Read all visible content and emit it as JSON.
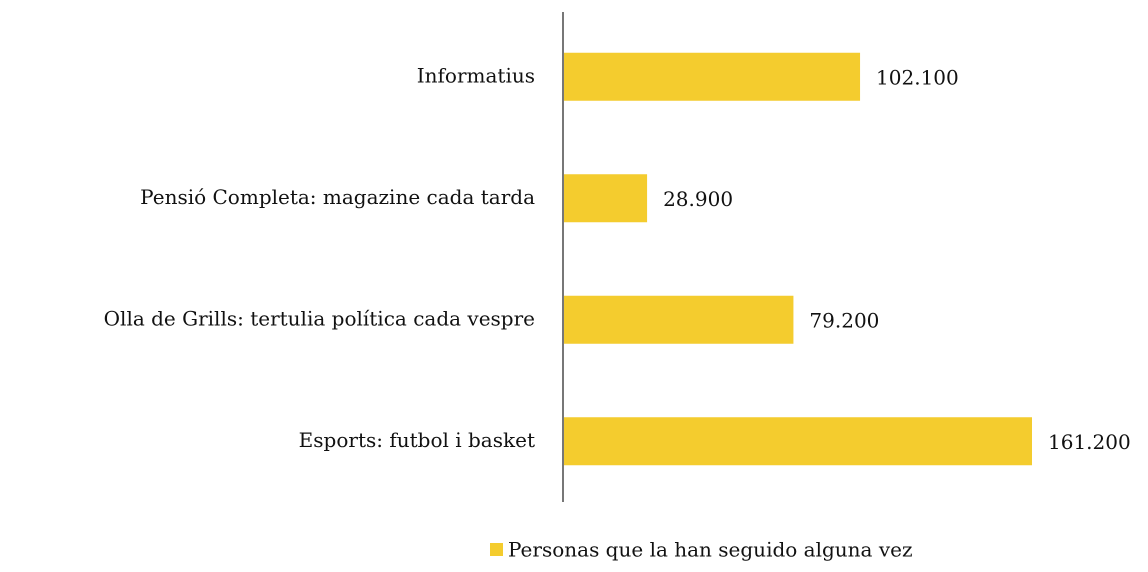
{
  "chart_data": {
    "type": "barh",
    "categories": [
      "Informatius",
      "Pensió Completa: magazine cada tarda",
      "Olla de Grills: tertulia política cada vespre",
      "Esports: futbol i basket"
    ],
    "series": [
      {
        "name": "Personas que la han seguido alguna vez",
        "color": "#f4cc2e",
        "values": [
          102100,
          28900,
          79200,
          161200
        ],
        "value_labels": [
          "102.100",
          "28.900",
          "79.200",
          "161.200"
        ]
      }
    ],
    "legend": "bottom"
  }
}
